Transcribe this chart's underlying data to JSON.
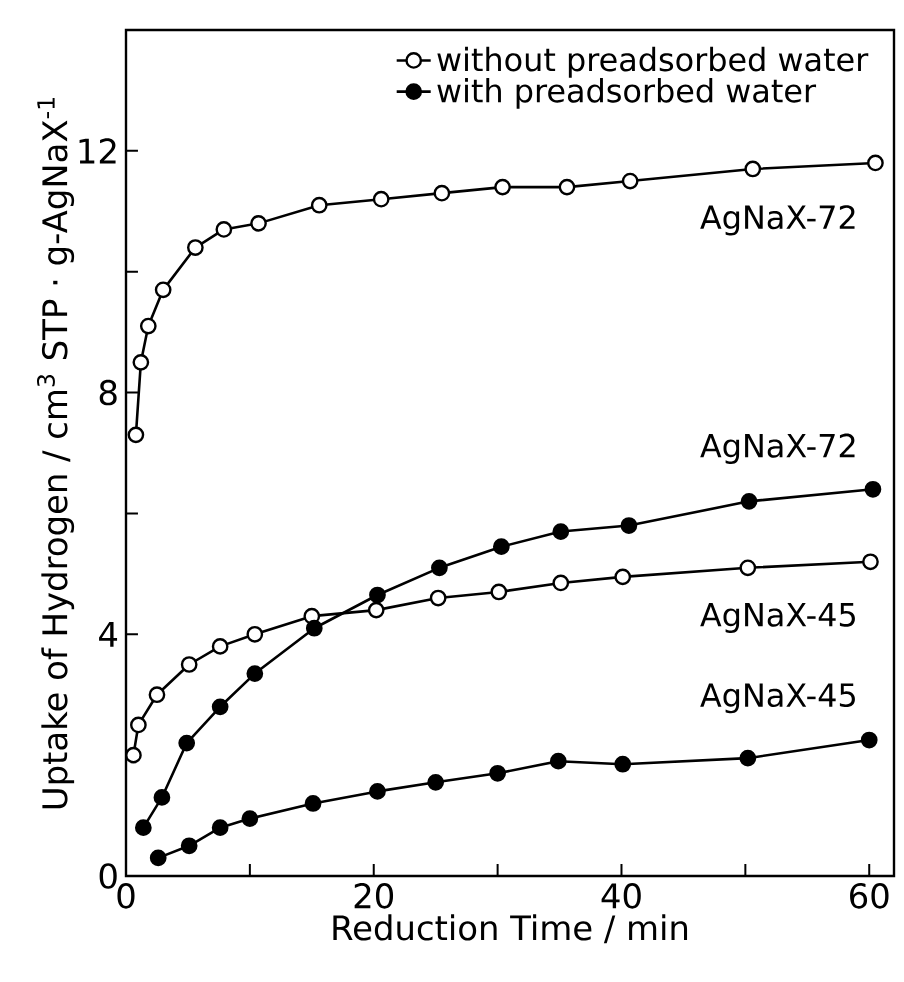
{
  "chart_data": {
    "type": "line",
    "xlabel": "Reduction  Time / min",
    "ylabel": "Uptake of Hydrogen / cm$^{3}$ STP · g-AgNaX$^{-1}$",
    "xlim": [
      0,
      62
    ],
    "ylim": [
      0,
      14
    ],
    "xticks": [
      0,
      {
        "value": 10,
        "label": null
      },
      20,
      {
        "value": 30,
        "label": null
      },
      40,
      {
        "value": 50,
        "label": null
      },
      60
    ],
    "yticks": [
      0,
      {
        "value": 2,
        "label": null
      },
      4,
      {
        "value": 6,
        "label": null
      },
      8,
      {
        "value": 10,
        "label": null
      },
      12
    ],
    "legend": "top right",
    "grid": false,
    "line_style": "solid",
    "series": [
      {
        "name": "without preadsorbed water",
        "color": "#000000",
        "marker": "circle",
        "x": [
          0.8,
          1.2,
          1.8,
          3,
          5.6,
          7.9,
          10.7,
          15.6,
          20.6,
          25.5,
          30.4,
          35.6,
          40.7,
          50.6,
          60.5
        ],
        "values": [
          7.3,
          8.5,
          9.1,
          9.7,
          10.4,
          10.7,
          10.8,
          11.1,
          11.2,
          11.3,
          11.4,
          11.4,
          11.5,
          11.7,
          11.8
        ]
      },
      {
        "color": "#000000",
        "marker": "circle",
        "x": [
          0.6,
          1,
          2.5,
          5.1,
          7.6,
          10.4,
          15,
          20.2,
          25.2,
          30.1,
          35.1,
          40.1,
          50.2,
          60.1
        ],
        "values": [
          2.0,
          2.5,
          3.0,
          3.5,
          3.8,
          4.0,
          4.3,
          4.4,
          4.6,
          4.7,
          4.85,
          4.95,
          5.1,
          5.2
        ]
      },
      {
        "name": "with preadsorbed water",
        "color": "#000000",
        "marker": "circle*",
        "x": [
          1.4,
          2.9,
          4.9,
          7.6,
          10.4,
          15.2,
          20.3,
          25.3,
          30.3,
          35.1,
          40.6,
          50.3,
          60.3
        ],
        "values": [
          0.8,
          1.3,
          2.2,
          2.8,
          3.35,
          4.1,
          4.65,
          5.1,
          5.45,
          5.7,
          5.8,
          6.2,
          6.4
        ]
      },
      {
        "color": "#000000",
        "marker": "circle*",
        "x": [
          2.6,
          5.1,
          7.6,
          10,
          15.1,
          20.3,
          25,
          30,
          34.9,
          40.1,
          50.2,
          60
        ],
        "values": [
          0.3,
          0.5,
          0.8,
          0.95,
          1.2,
          1.4,
          1.55,
          1.7,
          1.9,
          1.85,
          1.95,
          2.25
        ]
      }
    ],
    "annotations": [
      "AgNaX-72",
      "AgNaX-72",
      "AgNaX-45",
      "AgNaX-45"
    ]
  }
}
